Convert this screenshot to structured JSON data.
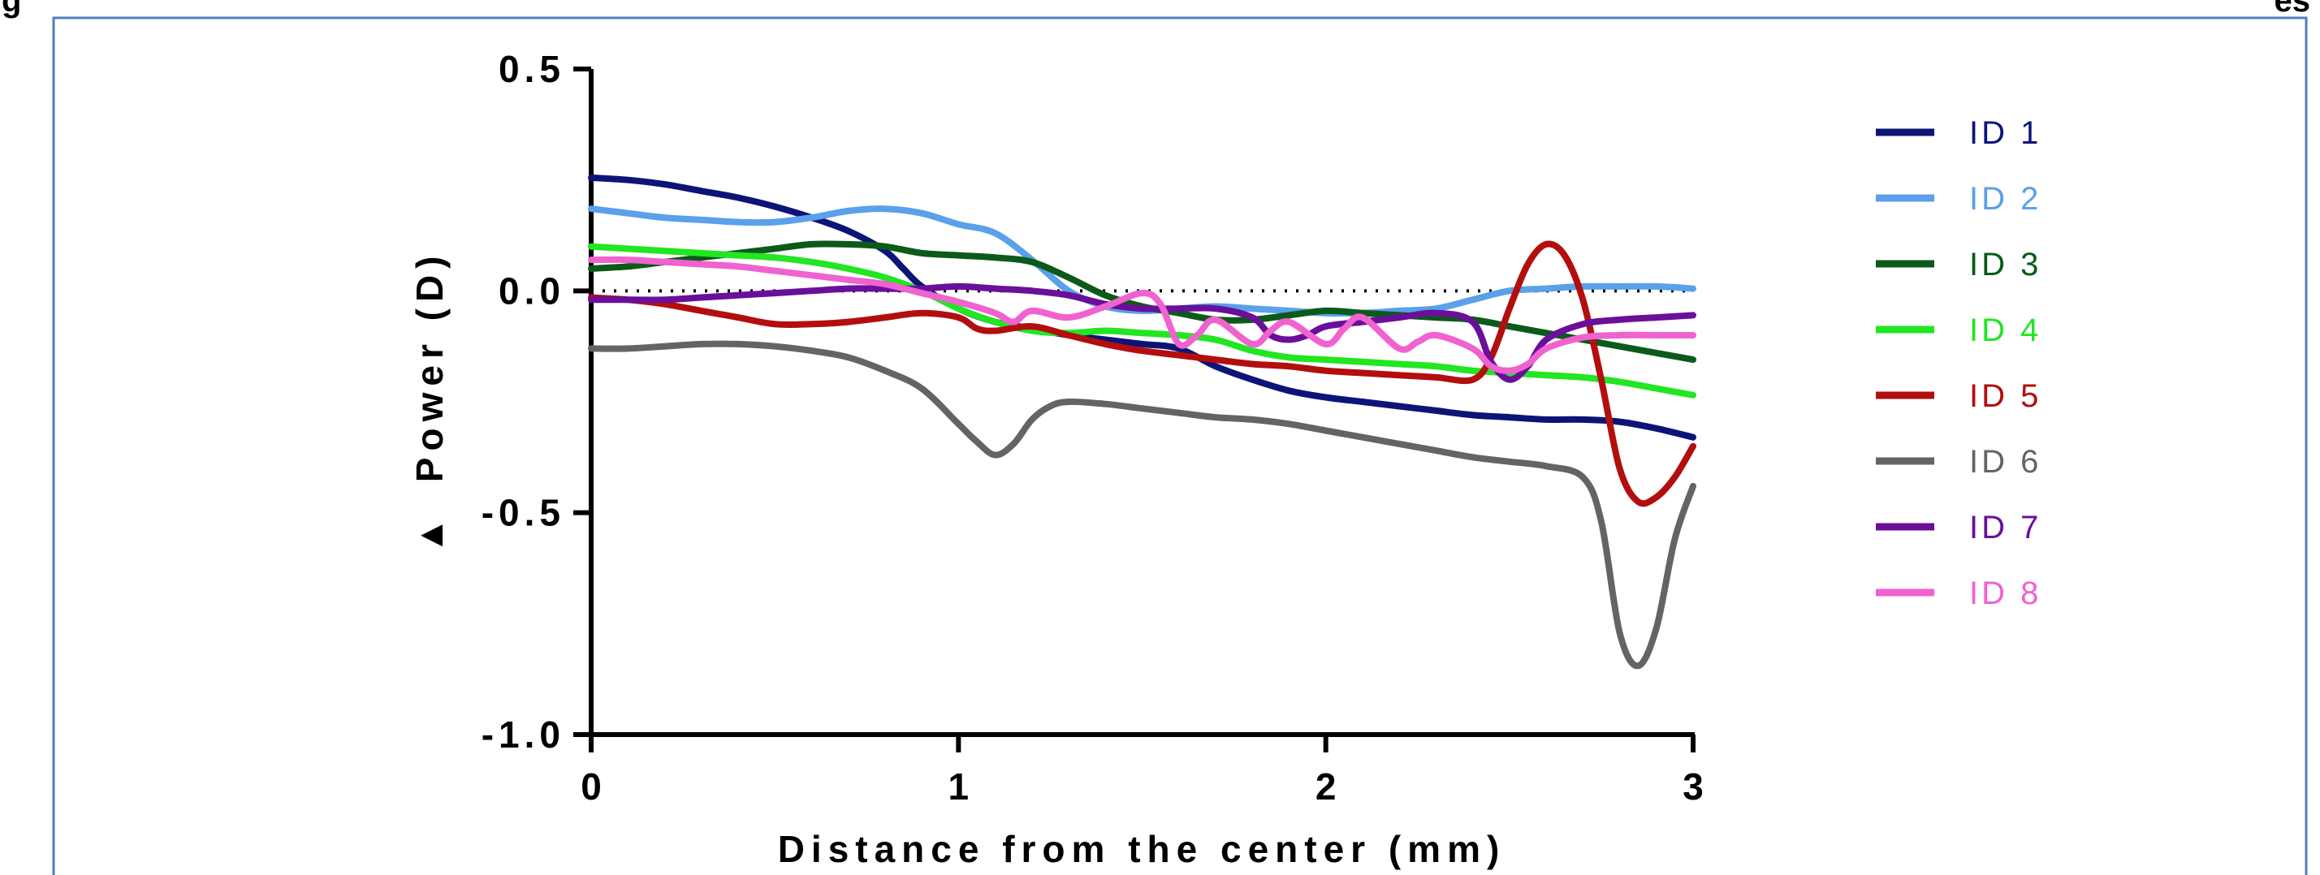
{
  "caption": {
    "left": "g",
    "right": "es"
  },
  "chart_data": {
    "type": "line",
    "xlabel": "Distance from the center (mm)",
    "ylabel": "Power (D)",
    "ylabel_symbol": "▲",
    "xlim": [
      0,
      3
    ],
    "ylim": [
      -1.0,
      0.5
    ],
    "x_ticks": [
      0,
      1,
      2,
      3
    ],
    "x_tick_labels": [
      "0",
      "1",
      "2",
      "3"
    ],
    "y_ticks": [
      0.5,
      0.0,
      -0.5,
      -1.0
    ],
    "y_tick_labels": [
      "0.5",
      "0.0",
      "-0.5",
      "-1.0"
    ],
    "reference_line": 0,
    "grid": false,
    "legend_position": "right",
    "series": [
      {
        "name": "ID 1",
        "color": "#0d1478",
        "points": [
          [
            0,
            0.255
          ],
          [
            0.1,
            0.25
          ],
          [
            0.2,
            0.24
          ],
          [
            0.3,
            0.225
          ],
          [
            0.4,
            0.21
          ],
          [
            0.5,
            0.19
          ],
          [
            0.6,
            0.165
          ],
          [
            0.7,
            0.135
          ],
          [
            0.8,
            0.09
          ],
          [
            0.85,
            0.05
          ],
          [
            0.9,
            0.01
          ],
          [
            1.0,
            -0.04
          ],
          [
            1.1,
            -0.07
          ],
          [
            1.2,
            -0.085
          ],
          [
            1.3,
            -0.1
          ],
          [
            1.4,
            -0.11
          ],
          [
            1.5,
            -0.12
          ],
          [
            1.6,
            -0.13
          ],
          [
            1.7,
            -0.17
          ],
          [
            1.8,
            -0.2
          ],
          [
            1.9,
            -0.225
          ],
          [
            2.0,
            -0.24
          ],
          [
            2.1,
            -0.25
          ],
          [
            2.2,
            -0.26
          ],
          [
            2.3,
            -0.27
          ],
          [
            2.4,
            -0.28
          ],
          [
            2.5,
            -0.285
          ],
          [
            2.6,
            -0.29
          ],
          [
            2.7,
            -0.29
          ],
          [
            2.8,
            -0.295
          ],
          [
            2.9,
            -0.31
          ],
          [
            3.0,
            -0.33
          ]
        ]
      },
      {
        "name": "ID 2",
        "color": "#5aa0ea",
        "points": [
          [
            0,
            0.185
          ],
          [
            0.1,
            0.175
          ],
          [
            0.2,
            0.165
          ],
          [
            0.3,
            0.16
          ],
          [
            0.4,
            0.155
          ],
          [
            0.5,
            0.155
          ],
          [
            0.6,
            0.165
          ],
          [
            0.7,
            0.18
          ],
          [
            0.8,
            0.185
          ],
          [
            0.9,
            0.175
          ],
          [
            1.0,
            0.15
          ],
          [
            1.1,
            0.13
          ],
          [
            1.2,
            0.07
          ],
          [
            1.3,
            0.0
          ],
          [
            1.4,
            -0.035
          ],
          [
            1.5,
            -0.045
          ],
          [
            1.6,
            -0.04
          ],
          [
            1.7,
            -0.035
          ],
          [
            1.8,
            -0.04
          ],
          [
            1.9,
            -0.045
          ],
          [
            2.0,
            -0.05
          ],
          [
            2.1,
            -0.05
          ],
          [
            2.2,
            -0.045
          ],
          [
            2.3,
            -0.04
          ],
          [
            2.4,
            -0.02
          ],
          [
            2.5,
            0.0
          ],
          [
            2.6,
            0.005
          ],
          [
            2.7,
            0.01
          ],
          [
            2.8,
            0.01
          ],
          [
            2.9,
            0.01
          ],
          [
            3.0,
            0.005
          ]
        ]
      },
      {
        "name": "ID 3",
        "color": "#0b5a1a",
        "points": [
          [
            0,
            0.05
          ],
          [
            0.1,
            0.055
          ],
          [
            0.2,
            0.065
          ],
          [
            0.3,
            0.075
          ],
          [
            0.4,
            0.085
          ],
          [
            0.5,
            0.095
          ],
          [
            0.6,
            0.105
          ],
          [
            0.7,
            0.105
          ],
          [
            0.8,
            0.1
          ],
          [
            0.9,
            0.085
          ],
          [
            1.0,
            0.08
          ],
          [
            1.1,
            0.075
          ],
          [
            1.2,
            0.065
          ],
          [
            1.3,
            0.03
          ],
          [
            1.4,
            -0.01
          ],
          [
            1.5,
            -0.035
          ],
          [
            1.6,
            -0.05
          ],
          [
            1.7,
            -0.065
          ],
          [
            1.8,
            -0.065
          ],
          [
            1.9,
            -0.055
          ],
          [
            2.0,
            -0.045
          ],
          [
            2.1,
            -0.05
          ],
          [
            2.2,
            -0.055
          ],
          [
            2.3,
            -0.06
          ],
          [
            2.4,
            -0.065
          ],
          [
            2.5,
            -0.08
          ],
          [
            2.6,
            -0.095
          ],
          [
            2.7,
            -0.11
          ],
          [
            2.8,
            -0.125
          ],
          [
            2.9,
            -0.14
          ],
          [
            3.0,
            -0.155
          ]
        ]
      },
      {
        "name": "ID 4",
        "color": "#22e622",
        "points": [
          [
            0,
            0.1
          ],
          [
            0.1,
            0.095
          ],
          [
            0.2,
            0.09
          ],
          [
            0.3,
            0.085
          ],
          [
            0.4,
            0.08
          ],
          [
            0.5,
            0.075
          ],
          [
            0.6,
            0.065
          ],
          [
            0.7,
            0.05
          ],
          [
            0.8,
            0.03
          ],
          [
            0.9,
            0.0
          ],
          [
            1.0,
            -0.04
          ],
          [
            1.1,
            -0.07
          ],
          [
            1.2,
            -0.09
          ],
          [
            1.3,
            -0.095
          ],
          [
            1.4,
            -0.09
          ],
          [
            1.5,
            -0.095
          ],
          [
            1.6,
            -0.1
          ],
          [
            1.7,
            -0.11
          ],
          [
            1.8,
            -0.135
          ],
          [
            1.9,
            -0.15
          ],
          [
            2.0,
            -0.155
          ],
          [
            2.1,
            -0.16
          ],
          [
            2.2,
            -0.165
          ],
          [
            2.3,
            -0.17
          ],
          [
            2.4,
            -0.18
          ],
          [
            2.5,
            -0.185
          ],
          [
            2.6,
            -0.19
          ],
          [
            2.7,
            -0.195
          ],
          [
            2.8,
            -0.205
          ],
          [
            2.9,
            -0.22
          ],
          [
            3.0,
            -0.235
          ]
        ]
      },
      {
        "name": "ID 5",
        "color": "#b30e0e",
        "points": [
          [
            0,
            -0.015
          ],
          [
            0.1,
            -0.02
          ],
          [
            0.2,
            -0.03
          ],
          [
            0.3,
            -0.045
          ],
          [
            0.4,
            -0.06
          ],
          [
            0.5,
            -0.075
          ],
          [
            0.6,
            -0.075
          ],
          [
            0.7,
            -0.07
          ],
          [
            0.8,
            -0.06
          ],
          [
            0.9,
            -0.05
          ],
          [
            1.0,
            -0.06
          ],
          [
            1.05,
            -0.085
          ],
          [
            1.1,
            -0.09
          ],
          [
            1.2,
            -0.08
          ],
          [
            1.3,
            -0.1
          ],
          [
            1.4,
            -0.12
          ],
          [
            1.5,
            -0.135
          ],
          [
            1.6,
            -0.145
          ],
          [
            1.7,
            -0.155
          ],
          [
            1.8,
            -0.165
          ],
          [
            1.9,
            -0.17
          ],
          [
            2.0,
            -0.18
          ],
          [
            2.1,
            -0.185
          ],
          [
            2.2,
            -0.19
          ],
          [
            2.3,
            -0.195
          ],
          [
            2.4,
            -0.2
          ],
          [
            2.45,
            -0.15
          ],
          [
            2.5,
            -0.04
          ],
          [
            2.55,
            0.06
          ],
          [
            2.6,
            0.105
          ],
          [
            2.65,
            0.08
          ],
          [
            2.7,
            -0.02
          ],
          [
            2.75,
            -0.2
          ],
          [
            2.8,
            -0.4
          ],
          [
            2.85,
            -0.475
          ],
          [
            2.9,
            -0.465
          ],
          [
            2.95,
            -0.42
          ],
          [
            3.0,
            -0.35
          ]
        ]
      },
      {
        "name": "ID 6",
        "color": "#646464",
        "points": [
          [
            0,
            -0.13
          ],
          [
            0.1,
            -0.13
          ],
          [
            0.2,
            -0.125
          ],
          [
            0.3,
            -0.12
          ],
          [
            0.4,
            -0.12
          ],
          [
            0.5,
            -0.125
          ],
          [
            0.6,
            -0.135
          ],
          [
            0.7,
            -0.15
          ],
          [
            0.8,
            -0.18
          ],
          [
            0.9,
            -0.22
          ],
          [
            1.0,
            -0.3
          ],
          [
            1.05,
            -0.34
          ],
          [
            1.1,
            -0.37
          ],
          [
            1.15,
            -0.345
          ],
          [
            1.2,
            -0.29
          ],
          [
            1.25,
            -0.26
          ],
          [
            1.3,
            -0.25
          ],
          [
            1.4,
            -0.255
          ],
          [
            1.5,
            -0.265
          ],
          [
            1.6,
            -0.275
          ],
          [
            1.7,
            -0.285
          ],
          [
            1.8,
            -0.29
          ],
          [
            1.9,
            -0.3
          ],
          [
            2.0,
            -0.315
          ],
          [
            2.1,
            -0.33
          ],
          [
            2.2,
            -0.345
          ],
          [
            2.3,
            -0.36
          ],
          [
            2.4,
            -0.375
          ],
          [
            2.5,
            -0.385
          ],
          [
            2.6,
            -0.395
          ],
          [
            2.7,
            -0.42
          ],
          [
            2.75,
            -0.52
          ],
          [
            2.8,
            -0.77
          ],
          [
            2.85,
            -0.845
          ],
          [
            2.9,
            -0.76
          ],
          [
            2.95,
            -0.56
          ],
          [
            3.0,
            -0.44
          ]
        ]
      },
      {
        "name": "ID 7",
        "color": "#6a0f9a",
        "points": [
          [
            0,
            -0.02
          ],
          [
            0.1,
            -0.02
          ],
          [
            0.2,
            -0.02
          ],
          [
            0.3,
            -0.015
          ],
          [
            0.4,
            -0.01
          ],
          [
            0.5,
            -0.005
          ],
          [
            0.6,
            0.0
          ],
          [
            0.7,
            0.005
          ],
          [
            0.8,
            0.005
          ],
          [
            0.9,
            0.005
          ],
          [
            1.0,
            0.01
          ],
          [
            1.1,
            0.005
          ],
          [
            1.2,
            0.0
          ],
          [
            1.3,
            -0.01
          ],
          [
            1.4,
            -0.03
          ],
          [
            1.5,
            -0.04
          ],
          [
            1.6,
            -0.04
          ],
          [
            1.7,
            -0.04
          ],
          [
            1.8,
            -0.06
          ],
          [
            1.85,
            -0.1
          ],
          [
            1.9,
            -0.11
          ],
          [
            1.95,
            -0.1
          ],
          [
            2.0,
            -0.08
          ],
          [
            2.1,
            -0.07
          ],
          [
            2.2,
            -0.06
          ],
          [
            2.3,
            -0.05
          ],
          [
            2.4,
            -0.07
          ],
          [
            2.45,
            -0.16
          ],
          [
            2.5,
            -0.2
          ],
          [
            2.55,
            -0.17
          ],
          [
            2.6,
            -0.11
          ],
          [
            2.7,
            -0.075
          ],
          [
            2.8,
            -0.065
          ],
          [
            2.9,
            -0.06
          ],
          [
            3.0,
            -0.055
          ]
        ]
      },
      {
        "name": "ID 8",
        "color": "#f062cf",
        "points": [
          [
            0,
            0.07
          ],
          [
            0.1,
            0.07
          ],
          [
            0.2,
            0.065
          ],
          [
            0.3,
            0.06
          ],
          [
            0.4,
            0.055
          ],
          [
            0.5,
            0.045
          ],
          [
            0.6,
            0.035
          ],
          [
            0.7,
            0.025
          ],
          [
            0.8,
            0.015
          ],
          [
            0.9,
            -0.005
          ],
          [
            1.0,
            -0.025
          ],
          [
            1.1,
            -0.05
          ],
          [
            1.15,
            -0.07
          ],
          [
            1.2,
            -0.045
          ],
          [
            1.3,
            -0.06
          ],
          [
            1.4,
            -0.035
          ],
          [
            1.5,
            -0.005
          ],
          [
            1.55,
            -0.03
          ],
          [
            1.6,
            -0.12
          ],
          [
            1.65,
            -0.1
          ],
          [
            1.7,
            -0.065
          ],
          [
            1.8,
            -0.12
          ],
          [
            1.85,
            -0.09
          ],
          [
            1.9,
            -0.07
          ],
          [
            2.0,
            -0.12
          ],
          [
            2.05,
            -0.085
          ],
          [
            2.1,
            -0.06
          ],
          [
            2.2,
            -0.13
          ],
          [
            2.25,
            -0.115
          ],
          [
            2.3,
            -0.1
          ],
          [
            2.4,
            -0.13
          ],
          [
            2.45,
            -0.17
          ],
          [
            2.5,
            -0.18
          ],
          [
            2.55,
            -0.165
          ],
          [
            2.6,
            -0.13
          ],
          [
            2.7,
            -0.105
          ],
          [
            2.8,
            -0.1
          ],
          [
            2.9,
            -0.1
          ],
          [
            3.0,
            -0.1
          ]
        ]
      }
    ]
  }
}
